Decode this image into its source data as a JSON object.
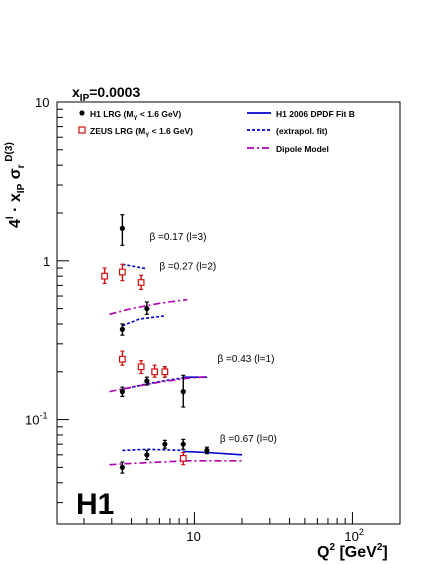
{
  "chart_data": {
    "type": "scatter",
    "title": "x_IP=0.0003",
    "title_main": "x",
    "title_sub": "IP",
    "title_rest": "=0.0003",
    "xlabel": "Q^2 [GeV^2]",
    "ylabel": "4^l · x_IP σ_r^D(3)",
    "x_scale": "log",
    "y_scale": "log",
    "xlim": [
      1.35,
      200
    ],
    "ylim": [
      0.022,
      10
    ],
    "grid": false,
    "legend_position": "top",
    "logo": "H1",
    "x_ticks": [
      {
        "value": 10,
        "base": "10",
        "exp": ""
      },
      {
        "value": 100,
        "base": "10",
        "exp": "2"
      }
    ],
    "y_ticks": [
      {
        "value": 10,
        "base": "10",
        "exp": ""
      },
      {
        "value": 1,
        "base": "1",
        "exp": ""
      },
      {
        "value": 0.1,
        "base": "10",
        "exp": "-1"
      }
    ],
    "legend": [
      {
        "key": "h1",
        "label_main": "H1 LRG (M",
        "label_sub": "Y",
        "label_rest": " < 1.6 GeV)",
        "marker": "filled-circle",
        "color": "#000000"
      },
      {
        "key": "zeus",
        "label_main": "ZEUS LRG (M",
        "label_sub": "Y",
        "label_rest": " < 1.6 GeV)",
        "marker": "open-square",
        "color": "#d01010"
      },
      {
        "key": "fit",
        "label_main": "H1 2006 DPDF Fit B",
        "marker": "solid-line",
        "color": "#0000cc"
      },
      {
        "key": "extrap",
        "label_main": "(extrapol. fit)",
        "marker": "dashed-line",
        "color": "#0000cc"
      },
      {
        "key": "dipole",
        "label_main": "Dipole Model",
        "marker": "dashdot-line",
        "color": "#b000b0"
      }
    ],
    "beta_labels": [
      {
        "text": "β =0.17 (l=3)",
        "x": 5.2,
        "y": 1.35
      },
      {
        "text": "β =0.27 (l=2)",
        "x": 6.0,
        "y": 0.88
      },
      {
        "text": "β =0.43 (l=1)",
        "x": 14.0,
        "y": 0.23
      },
      {
        "text": "β =0.67 (l=0)",
        "x": 14.5,
        "y": 0.072
      }
    ],
    "series": [
      {
        "name": "H1 LRG",
        "points": [
          {
            "x": 3.5,
            "y": 1.6,
            "err": [
              1.25,
              1.95
            ]
          },
          {
            "x": 3.5,
            "y": 0.37,
            "err": [
              0.34,
              0.4
            ]
          },
          {
            "x": 5.0,
            "y": 0.5,
            "err": [
              0.46,
              0.55
            ]
          },
          {
            "x": 3.5,
            "y": 0.15,
            "err": [
              0.14,
              0.16
            ]
          },
          {
            "x": 5.0,
            "y": 0.175,
            "err": [
              0.165,
              0.185
            ]
          },
          {
            "x": 6.5,
            "y": 0.2,
            "err": [
              0.185,
              0.215
            ]
          },
          {
            "x": 8.5,
            "y": 0.15,
            "err": [
              0.12,
              0.19
            ]
          },
          {
            "x": 3.5,
            "y": 0.05,
            "err": [
              0.046,
              0.054
            ]
          },
          {
            "x": 5.0,
            "y": 0.06,
            "err": [
              0.056,
              0.064
            ]
          },
          {
            "x": 6.5,
            "y": 0.07,
            "err": [
              0.066,
              0.074
            ]
          },
          {
            "x": 8.5,
            "y": 0.07,
            "err": [
              0.065,
              0.075
            ]
          },
          {
            "x": 12.0,
            "y": 0.064,
            "err": [
              0.061,
              0.067
            ]
          }
        ]
      },
      {
        "name": "ZEUS LRG",
        "points": [
          {
            "x": 2.7,
            "y": 0.8,
            "err": [
              0.72,
              0.9
            ]
          },
          {
            "x": 3.5,
            "y": 0.85,
            "err": [
              0.75,
              0.95
            ]
          },
          {
            "x": 4.6,
            "y": 0.73,
            "err": [
              0.66,
              0.81
            ]
          },
          {
            "x": 3.5,
            "y": 0.24,
            "err": [
              0.22,
              0.27
            ]
          },
          {
            "x": 4.6,
            "y": 0.215,
            "err": [
              0.195,
              0.235
            ]
          },
          {
            "x": 5.6,
            "y": 0.2,
            "err": [
              0.185,
              0.22
            ]
          },
          {
            "x": 6.5,
            "y": 0.2,
            "err": [
              0.185,
              0.215
            ]
          },
          {
            "x": 8.5,
            "y": 0.057,
            "err": [
              0.052,
              0.062
            ]
          }
        ]
      },
      {
        "name": "H1 2006 DPDF Fit B",
        "style": "solid",
        "points": [
          {
            "x": 8.5,
            "y": 0.185
          },
          {
            "x": 12,
            "y": 0.185
          },
          {
            "x": 8.5,
            "y": 0.063
          },
          {
            "x": 12,
            "y": 0.062
          },
          {
            "x": 20,
            "y": 0.06
          }
        ]
      },
      {
        "name": "(extrapol. fit)",
        "style": "dashed",
        "curves": [
          [
            {
              "x": 3.5,
              "y": 0.95
            },
            {
              "x": 5.0,
              "y": 0.89
            }
          ],
          [
            {
              "x": 3.5,
              "y": 0.39
            },
            {
              "x": 4.5,
              "y": 0.43
            },
            {
              "x": 6.5,
              "y": 0.45
            }
          ],
          [
            {
              "x": 3.5,
              "y": 0.155
            },
            {
              "x": 5.0,
              "y": 0.168
            },
            {
              "x": 7.0,
              "y": 0.178
            },
            {
              "x": 8.5,
              "y": 0.183
            }
          ],
          [
            {
              "x": 3.5,
              "y": 0.064
            },
            {
              "x": 5.0,
              "y": 0.065
            },
            {
              "x": 8.5,
              "y": 0.064
            }
          ]
        ]
      },
      {
        "name": "Dipole Model",
        "style": "dashdot",
        "curves": [
          [
            {
              "x": 2.9,
              "y": 0.46
            },
            {
              "x": 4.0,
              "y": 0.5
            },
            {
              "x": 6.0,
              "y": 0.54
            },
            {
              "x": 9.0,
              "y": 0.57
            }
          ],
          [
            {
              "x": 2.9,
              "y": 0.15
            },
            {
              "x": 4.0,
              "y": 0.16
            },
            {
              "x": 6.0,
              "y": 0.172
            },
            {
              "x": 9.0,
              "y": 0.182
            },
            {
              "x": 12.0,
              "y": 0.186
            }
          ],
          [
            {
              "x": 2.9,
              "y": 0.052
            },
            {
              "x": 4.0,
              "y": 0.053
            },
            {
              "x": 6.0,
              "y": 0.054
            },
            {
              "x": 9.0,
              "y": 0.055
            },
            {
              "x": 20.0,
              "y": 0.055
            }
          ]
        ]
      }
    ]
  }
}
